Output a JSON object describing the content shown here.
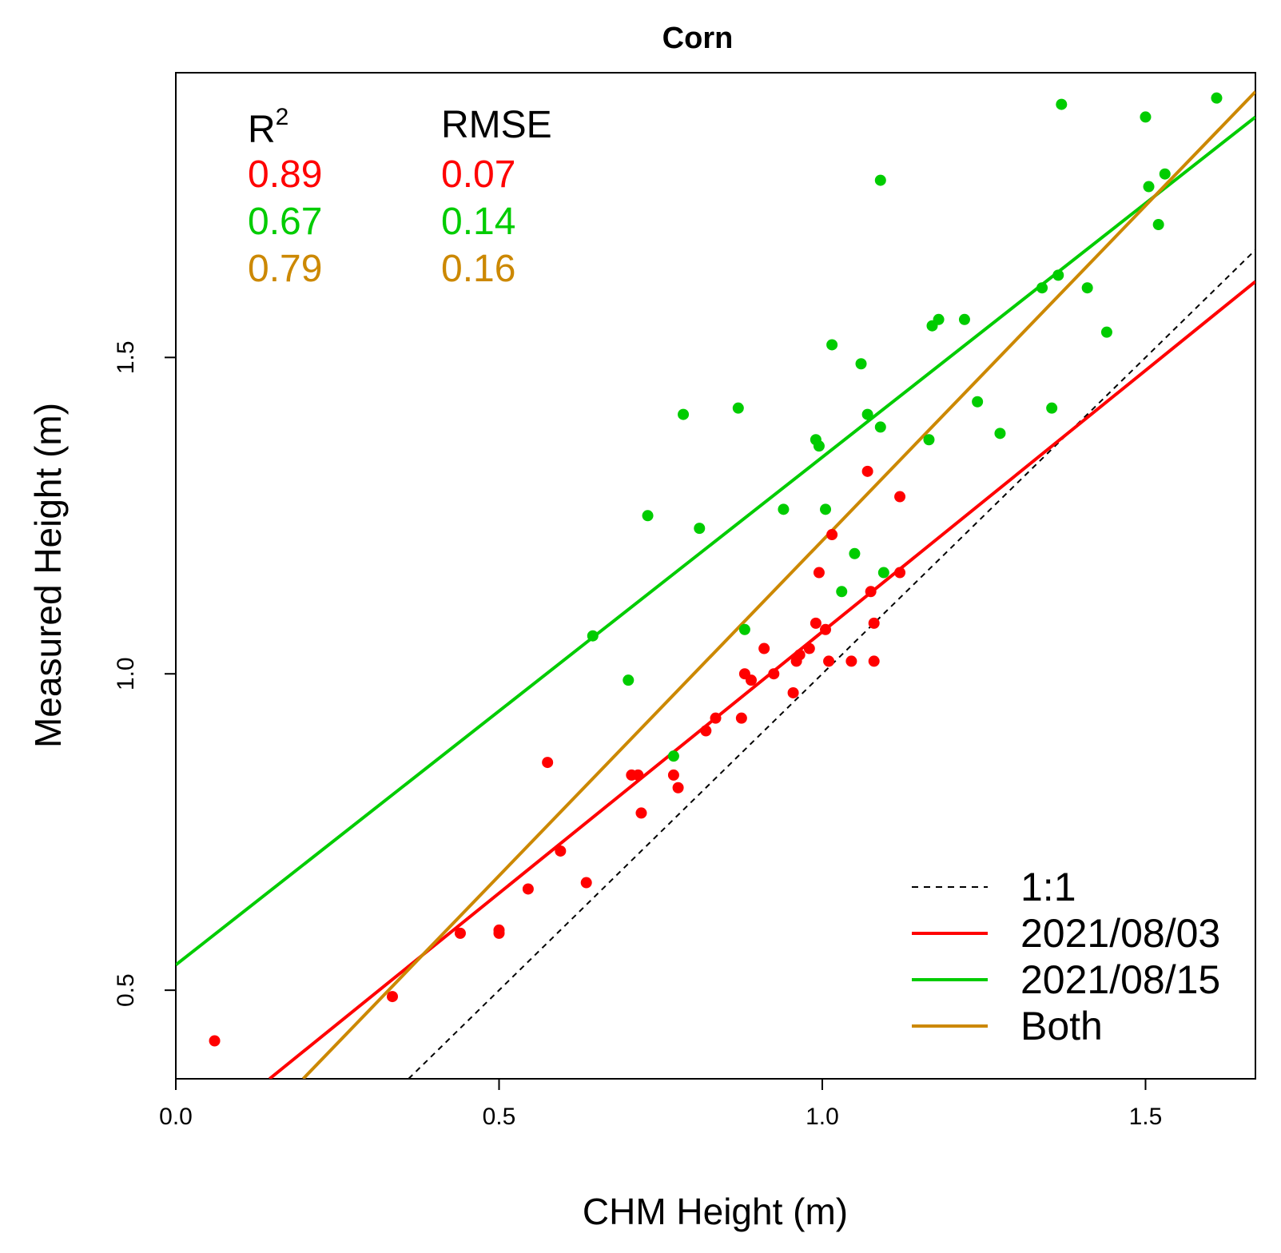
{
  "chart_data": {
    "type": "scatter",
    "title": "Corn",
    "xlabel": "CHM Height (m)",
    "ylabel": "Measured Height (m)",
    "xlim": [
      0.0,
      1.67
    ],
    "ylim": [
      0.36,
      1.95
    ],
    "xticks": [
      "0.0",
      "0.5",
      "1.0",
      "1.5"
    ],
    "yticks": [
      "0.5",
      "1.0",
      "1.5"
    ],
    "grid": false,
    "legend_position": "bottom-right",
    "stats": {
      "header_r2": "R",
      "header_r2_sup": "2",
      "header_rmse": "RMSE",
      "rows": [
        {
          "r2": "0.89",
          "rmse": "0.07",
          "color": "#ff0000"
        },
        {
          "r2": "0.67",
          "rmse": "0.14",
          "color": "#00cc00"
        },
        {
          "r2": "0.79",
          "rmse": "0.16",
          "color": "#cc8800"
        }
      ]
    },
    "legend": [
      {
        "label": "1:1",
        "color": "#000000",
        "dashed": true
      },
      {
        "label": "2021/08/03",
        "color": "#ff0000",
        "dashed": false
      },
      {
        "label": "2021/08/15",
        "color": "#00cc00",
        "dashed": false
      },
      {
        "label": "Both",
        "color": "#cc8800",
        "dashed": false
      }
    ],
    "lines": [
      {
        "name": "1:1",
        "color": "#000000",
        "dashed": true,
        "x": [
          0.36,
          1.67
        ],
        "y": [
          0.36,
          1.67
        ]
      },
      {
        "name": "2021/08/03",
        "color": "#ff0000",
        "dashed": false,
        "x": [
          0.145,
          1.67
        ],
        "y": [
          0.36,
          1.62
        ]
      },
      {
        "name": "2021/08/15",
        "color": "#00cc00",
        "dashed": false,
        "x": [
          0.0,
          1.67
        ],
        "y": [
          0.54,
          1.88
        ]
      },
      {
        "name": "Both",
        "color": "#cc8800",
        "dashed": false,
        "x": [
          0.197,
          1.67
        ],
        "y": [
          0.36,
          1.92
        ]
      }
    ],
    "series": [
      {
        "name": "2021/08/03",
        "color": "#ff0000",
        "points": [
          [
            0.06,
            0.42
          ],
          [
            0.335,
            0.49
          ],
          [
            0.44,
            0.59
          ],
          [
            0.5,
            0.595
          ],
          [
            0.5,
            0.59
          ],
          [
            0.545,
            0.66
          ],
          [
            0.575,
            0.86
          ],
          [
            0.595,
            0.72
          ],
          [
            0.635,
            0.67
          ],
          [
            0.705,
            0.84
          ],
          [
            0.715,
            0.84
          ],
          [
            0.72,
            0.78
          ],
          [
            0.77,
            0.84
          ],
          [
            0.777,
            0.82
          ],
          [
            0.82,
            0.91
          ],
          [
            0.835,
            0.93
          ],
          [
            0.875,
            0.93
          ],
          [
            0.88,
            1.0
          ],
          [
            0.89,
            0.99
          ],
          [
            0.91,
            1.04
          ],
          [
            0.925,
            1.0
          ],
          [
            0.955,
            0.97
          ],
          [
            0.96,
            1.02
          ],
          [
            0.965,
            1.03
          ],
          [
            0.98,
            1.04
          ],
          [
            0.99,
            1.08
          ],
          [
            0.995,
            1.16
          ],
          [
            1.005,
            1.07
          ],
          [
            1.01,
            1.02
          ],
          [
            1.015,
            1.22
          ],
          [
            1.045,
            1.02
          ],
          [
            1.07,
            1.32
          ],
          [
            1.075,
            1.13
          ],
          [
            1.08,
            1.08
          ],
          [
            1.08,
            1.02
          ],
          [
            1.12,
            1.28
          ],
          [
            1.12,
            1.16
          ]
        ]
      },
      {
        "name": "2021/08/15",
        "color": "#00cc00",
        "points": [
          [
            0.645,
            1.06
          ],
          [
            0.7,
            0.99
          ],
          [
            0.73,
            1.25
          ],
          [
            0.77,
            0.87
          ],
          [
            0.785,
            1.41
          ],
          [
            0.81,
            1.23
          ],
          [
            0.87,
            1.42
          ],
          [
            0.88,
            1.07
          ],
          [
            0.94,
            1.26
          ],
          [
            0.99,
            1.37
          ],
          [
            0.995,
            1.36
          ],
          [
            1.005,
            1.26
          ],
          [
            1.015,
            1.52
          ],
          [
            1.03,
            1.13
          ],
          [
            1.05,
            1.19
          ],
          [
            1.06,
            1.49
          ],
          [
            1.07,
            1.41
          ],
          [
            1.09,
            1.39
          ],
          [
            1.09,
            1.78
          ],
          [
            1.095,
            1.16
          ],
          [
            1.165,
            1.37
          ],
          [
            1.17,
            1.55
          ],
          [
            1.18,
            1.56
          ],
          [
            1.22,
            1.56
          ],
          [
            1.24,
            1.43
          ],
          [
            1.275,
            1.38
          ],
          [
            1.34,
            1.61
          ],
          [
            1.355,
            1.42
          ],
          [
            1.365,
            1.63
          ],
          [
            1.37,
            1.9
          ],
          [
            1.41,
            1.61
          ],
          [
            1.44,
            1.54
          ],
          [
            1.5,
            1.88
          ],
          [
            1.505,
            1.77
          ],
          [
            1.52,
            1.71
          ],
          [
            1.53,
            1.79
          ],
          [
            1.61,
            1.91
          ]
        ]
      }
    ]
  }
}
